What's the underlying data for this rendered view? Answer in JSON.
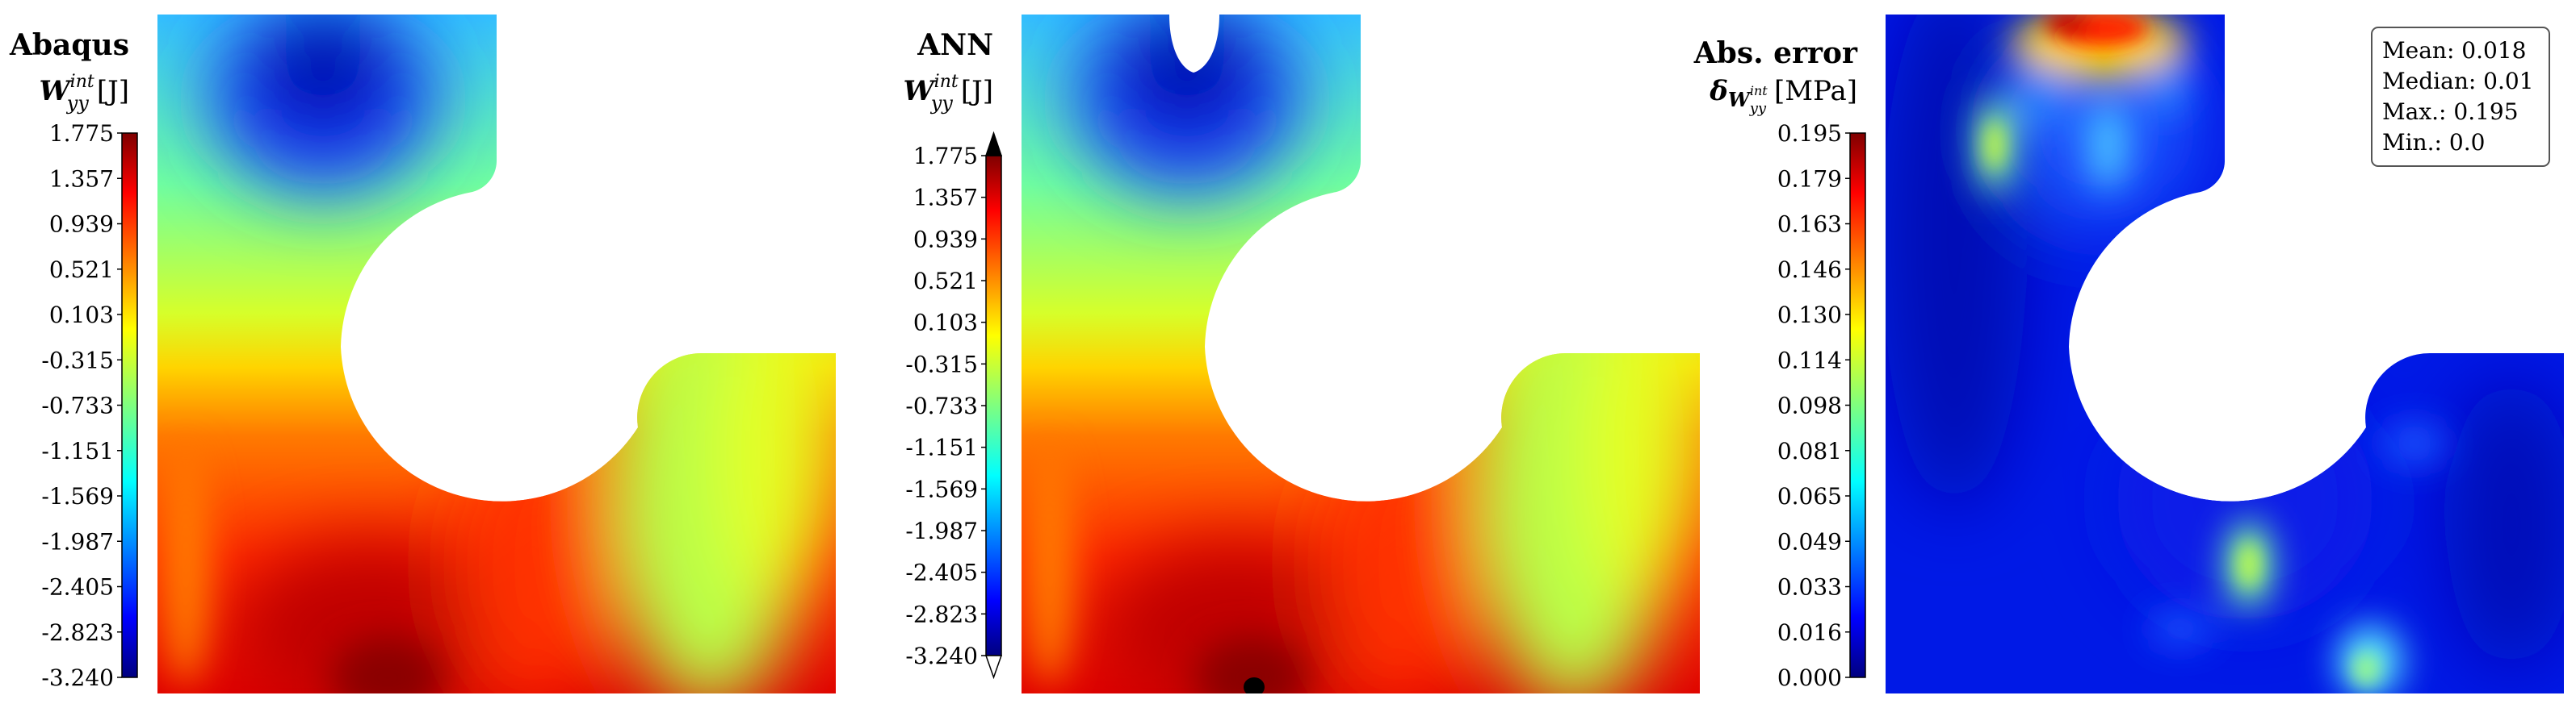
{
  "panels": [
    {
      "title": "Abaqus",
      "quantity": {
        "symbol": "W",
        "subscript": "yy",
        "superscript": "int",
        "unit": "[J]"
      },
      "colorbar": {
        "ticks": [
          "1.775",
          "1.357",
          "0.939",
          "0.521",
          "0.103",
          "-0.315",
          "-0.733",
          "-1.151",
          "-1.569",
          "-1.987",
          "-2.405",
          "-2.823",
          "-3.240"
        ],
        "extend_arrows": false
      }
    },
    {
      "title": "ANN",
      "quantity": {
        "symbol": "W",
        "subscript": "yy",
        "superscript": "int",
        "unit": "[J]"
      },
      "colorbar": {
        "ticks": [
          "1.775",
          "1.357",
          "0.939",
          "0.521",
          "0.103",
          "-0.315",
          "-0.733",
          "-1.151",
          "-1.569",
          "-1.987",
          "-2.405",
          "-2.823",
          "-3.240"
        ],
        "extend_arrows": true
      }
    },
    {
      "title": "Abs. error",
      "quantity": {
        "symbol": "δ",
        "subscript": "W",
        "subsub": "yy",
        "supsub": "int",
        "unit": "[MPa]"
      },
      "colorbar": {
        "ticks": [
          "0.195",
          "0.179",
          "0.163",
          "0.146",
          "0.130",
          "0.114",
          "0.098",
          "0.081",
          "0.065",
          "0.049",
          "0.033",
          "0.016",
          "0.000"
        ],
        "extend_arrows": false
      },
      "stats": {
        "mean": "Mean: 0.018",
        "median": "Median: 0.01",
        "max": "Max.: 0.195",
        "min": "Min.: 0.0"
      }
    }
  ],
  "colormap": "jet"
}
